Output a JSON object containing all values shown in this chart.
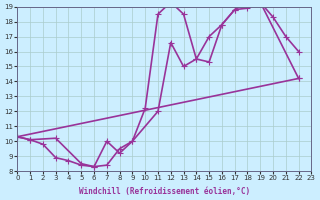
{
  "xlabel": "Windchill (Refroidissement éolien,°C)",
  "ylabel": "",
  "xlim": [
    0,
    23
  ],
  "ylim": [
    8,
    19
  ],
  "yticks": [
    8,
    9,
    10,
    11,
    12,
    13,
    14,
    15,
    16,
    17,
    18,
    19
  ],
  "xticks": [
    0,
    1,
    2,
    3,
    4,
    5,
    6,
    7,
    8,
    9,
    10,
    11,
    12,
    13,
    14,
    15,
    16,
    17,
    18,
    19,
    20,
    21,
    22,
    23
  ],
  "bg_color": "#cceeff",
  "grid_color": "#aacccc",
  "line_color": "#993399",
  "lines": [
    [
      [
        0,
        10.3
      ],
      [
        1,
        10.1
      ],
      [
        2,
        9.8
      ],
      [
        3,
        8.9
      ],
      [
        4,
        8.7
      ],
      [
        5,
        8.4
      ],
      [
        6,
        8.3
      ],
      [
        7,
        10.0
      ],
      [
        8,
        9.2
      ],
      [
        9,
        10.0
      ],
      [
        10,
        12.2
      ],
      [
        11,
        18.5
      ],
      [
        12,
        19.3
      ],
      [
        13,
        18.5
      ],
      [
        14,
        15.5
      ],
      [
        15,
        15.3
      ],
      [
        16,
        17.8
      ],
      [
        17,
        18.8
      ],
      [
        18,
        18.9
      ],
      [
        19,
        19.3
      ],
      [
        20,
        18.3
      ],
      [
        21,
        17.0
      ],
      [
        22,
        16.0
      ]
    ],
    [
      [
        0,
        10.3
      ],
      [
        1,
        10.1
      ],
      [
        3,
        10.2
      ],
      [
        5,
        8.5
      ],
      [
        6,
        8.3
      ],
      [
        7,
        8.4
      ],
      [
        8,
        9.5
      ],
      [
        9,
        10.0
      ],
      [
        11,
        12.0
      ],
      [
        12,
        16.6
      ],
      [
        13,
        15.0
      ],
      [
        14,
        15.5
      ],
      [
        15,
        17.0
      ],
      [
        16,
        17.8
      ],
      [
        17,
        18.8
      ],
      [
        18,
        19.3
      ],
      [
        19,
        19.3
      ],
      [
        22,
        14.2
      ]
    ],
    [
      [
        0,
        10.3
      ],
      [
        22,
        14.2
      ]
    ]
  ],
  "marker": "+",
  "markersize": 5,
  "linewidth": 1.2
}
